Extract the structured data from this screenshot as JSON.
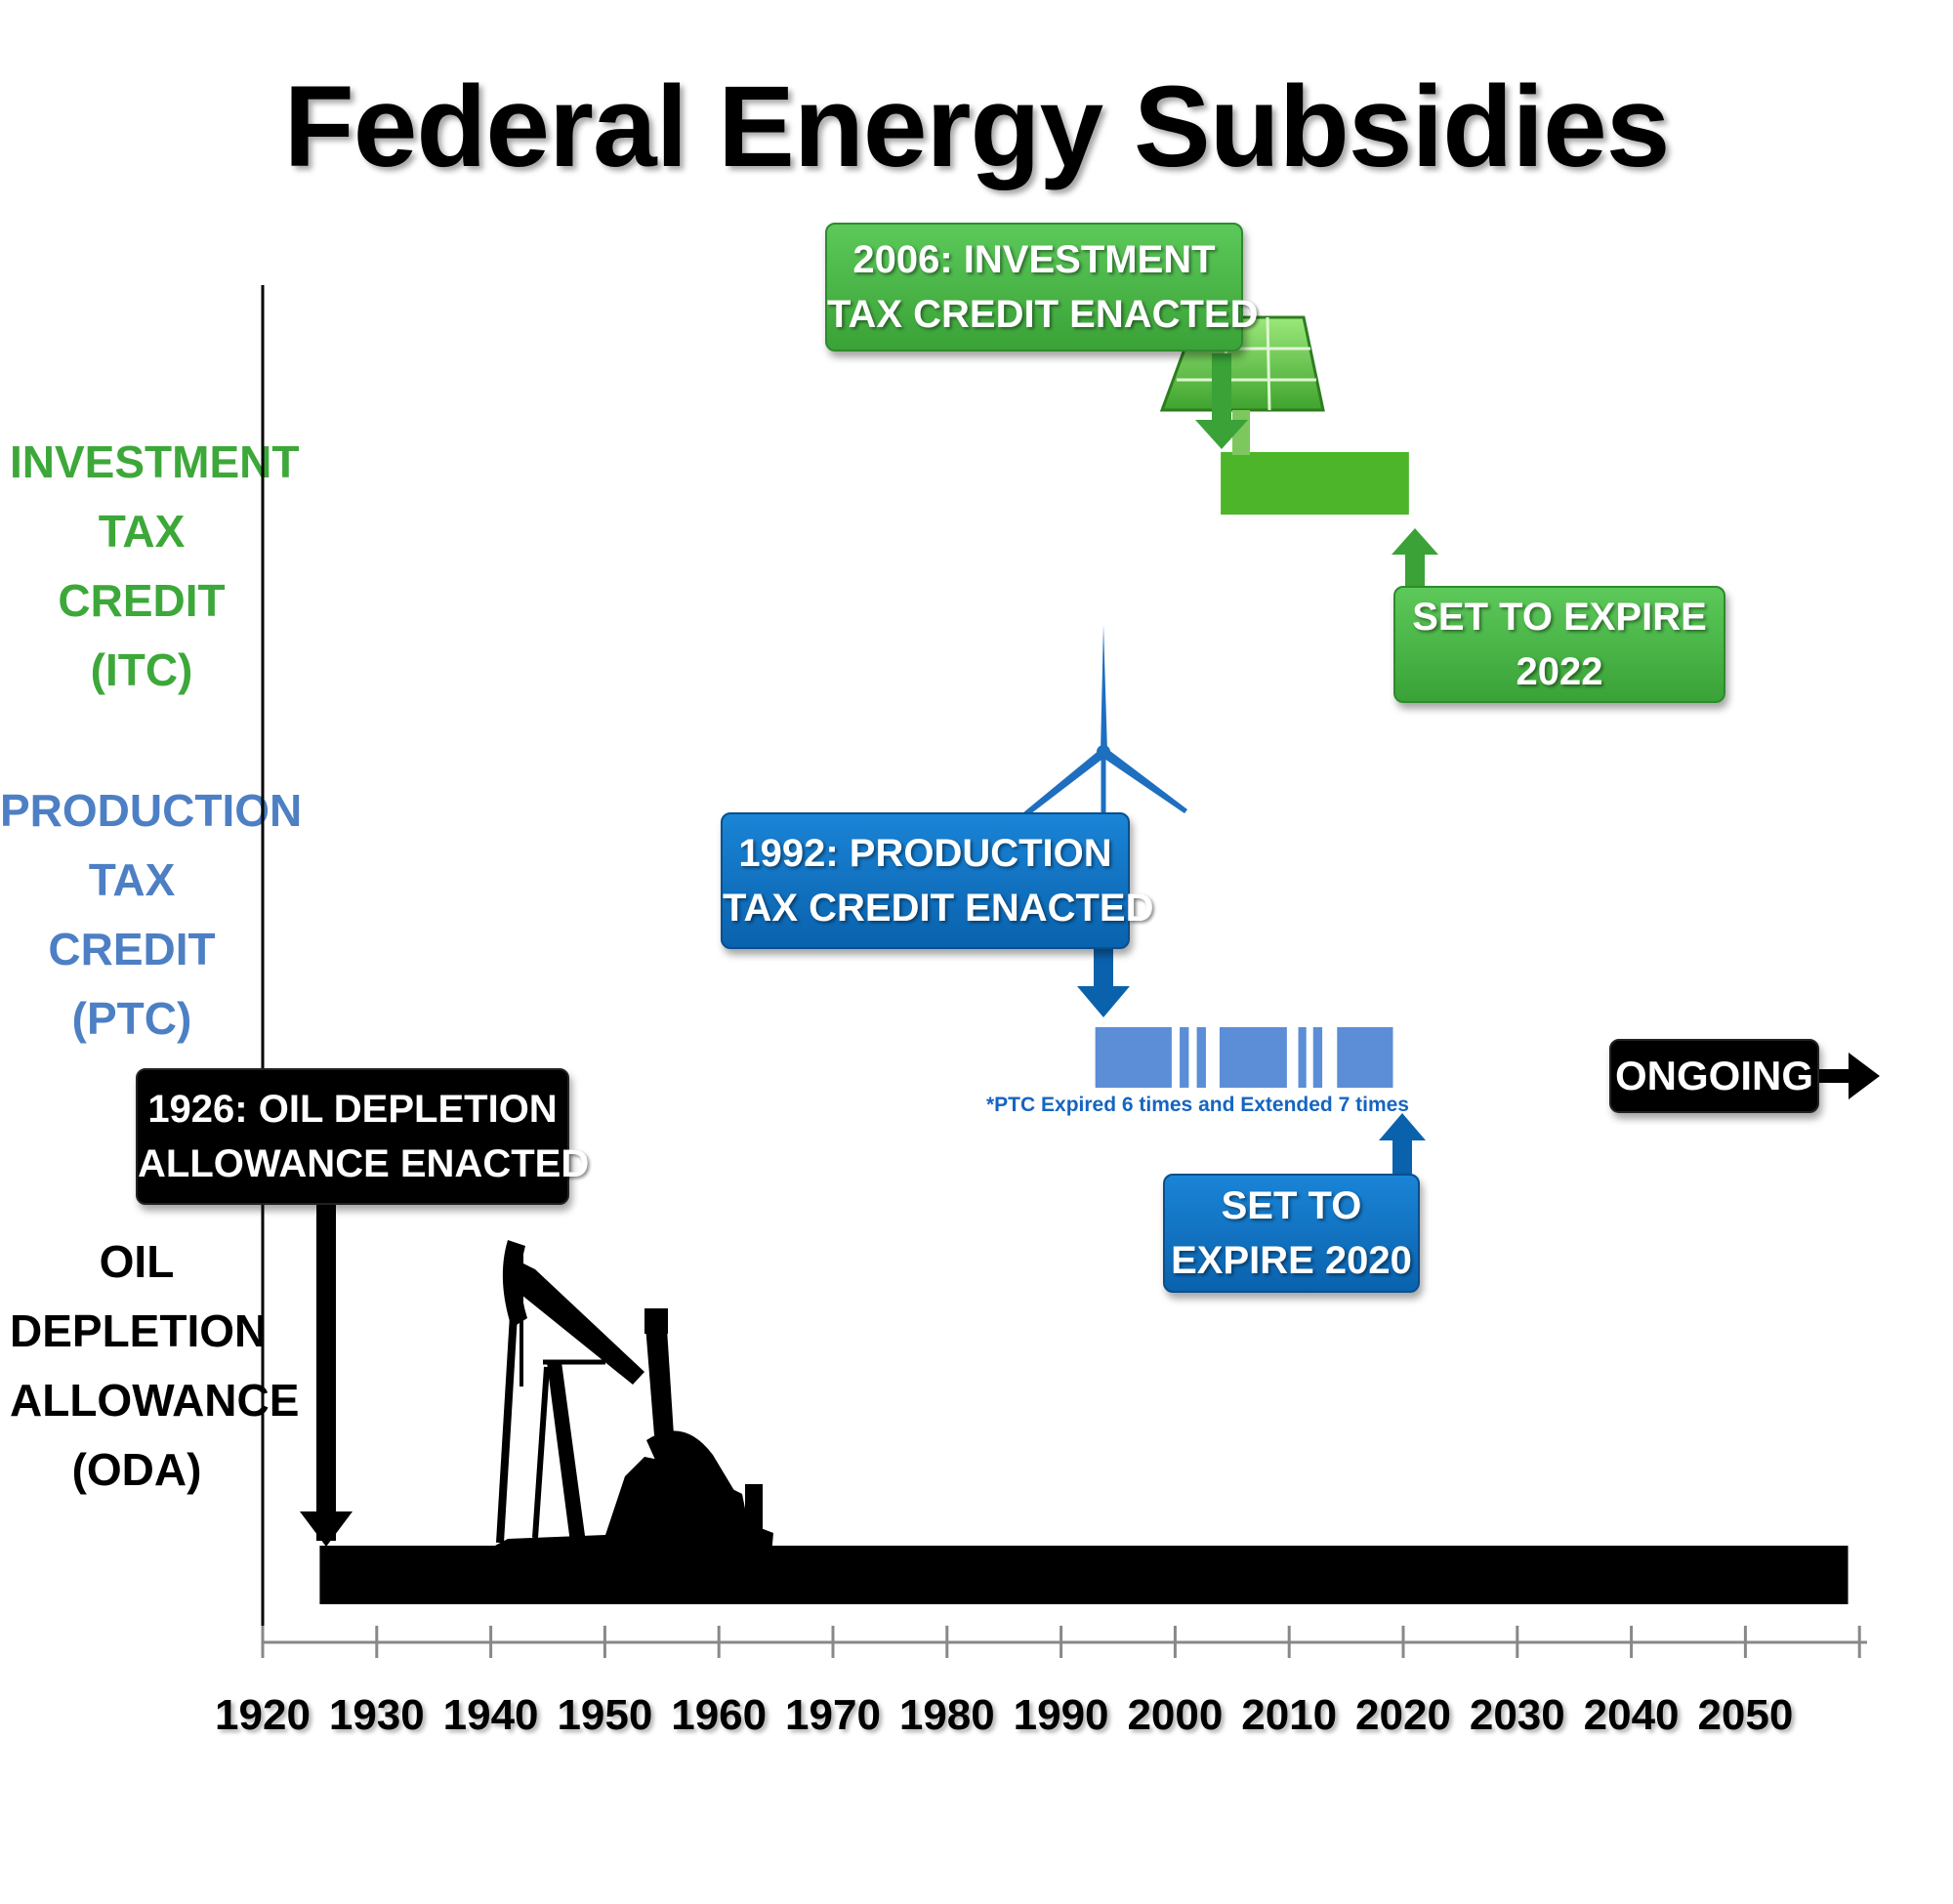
{
  "title": "Federal Energy Subsidies",
  "rows": {
    "itc": {
      "lines": [
        "INVESTMENT",
        "TAX",
        "CREDIT",
        "(ITC)"
      ],
      "color": "#3da83a"
    },
    "ptc": {
      "lines": [
        "PRODUCTION",
        "TAX",
        "CREDIT",
        "(PTC)"
      ],
      "color": "#4d7fc4"
    },
    "oda": {
      "lines": [
        "OIL",
        "DEPLETION",
        "ALLOWANCE",
        "(ODA)"
      ],
      "color": "#000000"
    }
  },
  "callouts": {
    "itc_enacted": [
      "2006: INVESTMENT",
      "TAX CREDIT ENACTED"
    ],
    "itc_expire": [
      "SET TO EXPIRE",
      "2022"
    ],
    "ptc_enacted": [
      "1992: PRODUCTION",
      "TAX CREDIT ENACTED"
    ],
    "ptc_expire": [
      "SET TO",
      "EXPIRE 2020"
    ],
    "oda_enacted": [
      "1926: OIL DEPLETION",
      "ALLOWANCE ENACTED"
    ],
    "ongoing": "ONGOING"
  },
  "footnote": "*PTC Expired 6 times and Extended 7 times",
  "icons": [
    "solar-panel-icon",
    "wind-turbine-icon",
    "oil-pump-jack-icon"
  ],
  "chart_data": {
    "type": "bar",
    "title": "Federal Energy Subsidies",
    "orientation": "horizontal-timeline",
    "xlim": [
      1920,
      2060
    ],
    "x_ticks": [
      1920,
      1930,
      1940,
      1950,
      1960,
      1970,
      1980,
      1990,
      2000,
      2010,
      2020,
      2030,
      2040,
      2050
    ],
    "grid": false,
    "series": [
      {
        "name": "INVESTMENT TAX CREDIT (ITC)",
        "color": "#4cb52a",
        "segments": [
          [
            2004,
            2020.5
          ]
        ]
      },
      {
        "name": "PRODUCTION TAX CREDIT (PTC)",
        "color": "#5b8ed6",
        "segments": [
          [
            1993,
            1999.7
          ],
          [
            2000.4,
            2001.2
          ],
          [
            2001.9,
            2002.7
          ],
          [
            2003.9,
            2009.8
          ],
          [
            2010.8,
            2011.5
          ],
          [
            2012.1,
            2012.9
          ],
          [
            2014.2,
            2019.1
          ]
        ]
      },
      {
        "name": "OIL DEPLETION ALLOWANCE (ODA)",
        "color": "#000000",
        "segments": [
          [
            1925,
            2059
          ]
        ]
      }
    ]
  }
}
